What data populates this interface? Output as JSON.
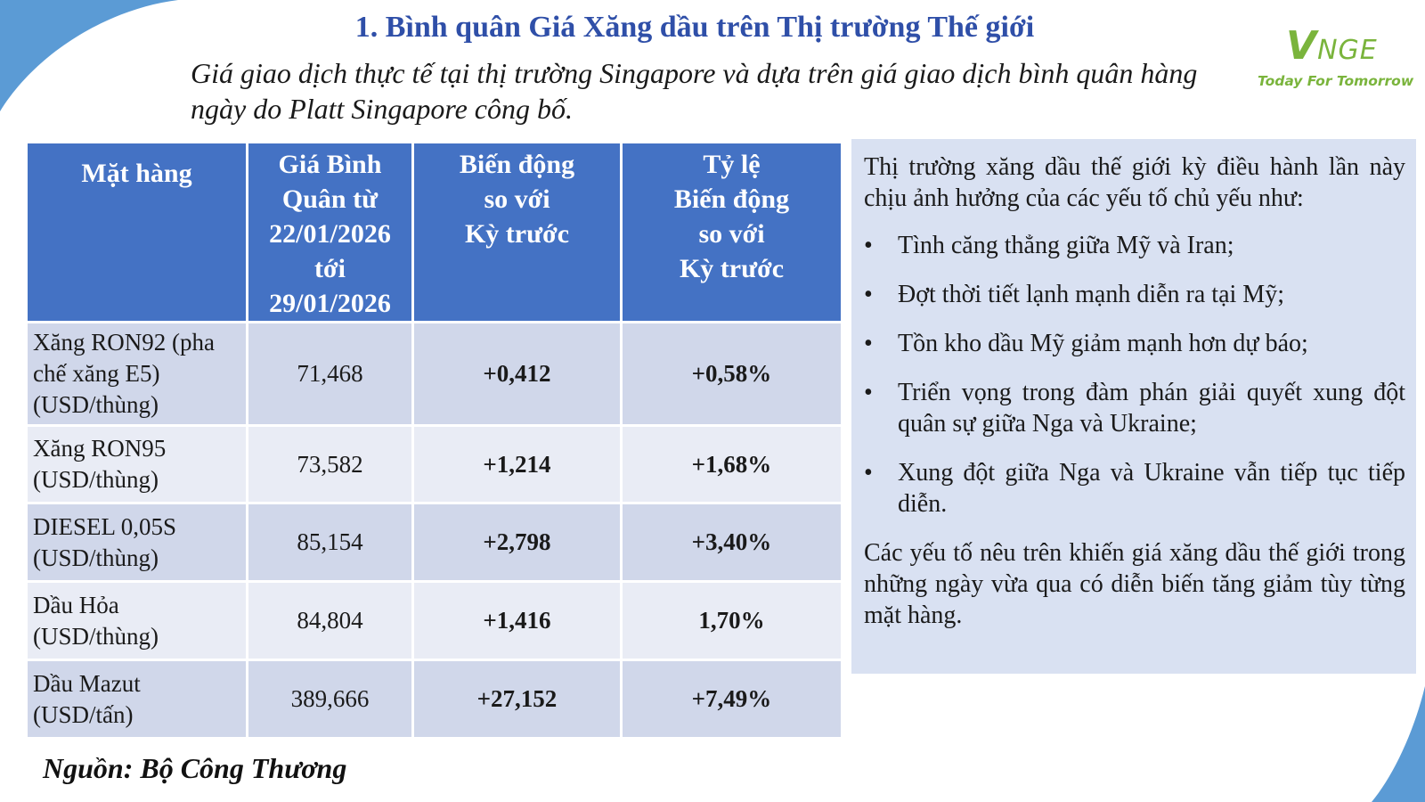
{
  "header": {
    "title": "1. Bình quân Giá Xăng dầu trên Thị trường Thế giới",
    "subtitle": "Giá giao dịch thực tế tại thị trường Singapore và dựa trên giá giao dịch bình quân hàng ngày do Platt Singapore công bố."
  },
  "logo": {
    "mark_v": "V",
    "mark_rest": "NGE",
    "tagline": "Today For Tomorrow",
    "color": "#7ab43c"
  },
  "table": {
    "headers": {
      "item": "Mặt hàng",
      "avg": [
        "Giá Bình",
        "Quân từ",
        "22/01/2026",
        "tới",
        "29/01/2026"
      ],
      "change": [
        "Biến động",
        "so với",
        "Kỳ trước"
      ],
      "rate": [
        "Tỷ lệ",
        "Biến động",
        "so với",
        "Kỳ trước"
      ]
    },
    "rows": [
      {
        "name": [
          "Xăng RON92 (pha",
          "chế xăng E5)",
          "(USD/thùng)"
        ],
        "avg": "71,468",
        "change": "+0,412",
        "rate": "+0,58%"
      },
      {
        "name": [
          "Xăng RON95",
          "(USD/thùng)"
        ],
        "avg": "73,582",
        "change": "+1,214",
        "rate": "+1,68%"
      },
      {
        "name": [
          "DIESEL 0,05S",
          "(USD/thùng)"
        ],
        "avg": "85,154",
        "change": "+2,798",
        "rate": "+3,40%"
      },
      {
        "name": [
          "Dầu Hỏa",
          "(USD/thùng)"
        ],
        "avg": "84,804",
        "change": "+1,416",
        "rate": "1,70%"
      },
      {
        "name": [
          "Dầu Mazut",
          "(USD/tấn)"
        ],
        "avg": "389,666",
        "change": "+27,152",
        "rate": "+7,49%"
      }
    ]
  },
  "source": "Nguồn: Bộ Công Thương",
  "panel": {
    "intro": "Thị trường xăng dầu thế giới kỳ điều hành lần này chịu ảnh hưởng của các yếu tố chủ yếu như:",
    "bullet_glyph": "•",
    "bullets": [
      "Tình căng thẳng giữa Mỹ và Iran;",
      "Đợt thời tiết lạnh mạnh diễn ra tại Mỹ;",
      "Tồn kho dầu Mỹ giảm mạnh hơn dự báo;",
      "Triển vọng trong đàm phán giải quyết xung đột quân sự giữa Nga và Ukraine;",
      "Xung đột giữa Nga và Ukraine vẫn tiếp tục tiếp diễn."
    ],
    "conclusion": "Các yếu tố nêu trên khiến giá xăng dầu thế giới trong những ngày vừa qua có diễn biến tăng giảm tùy từng mặt hàng."
  },
  "colors": {
    "header_bg": "#4472c4",
    "title": "#2f4fa8",
    "positive": "#2eb34a",
    "panel_bg": "#d9e1f2",
    "corner": "#5b9bd5"
  }
}
